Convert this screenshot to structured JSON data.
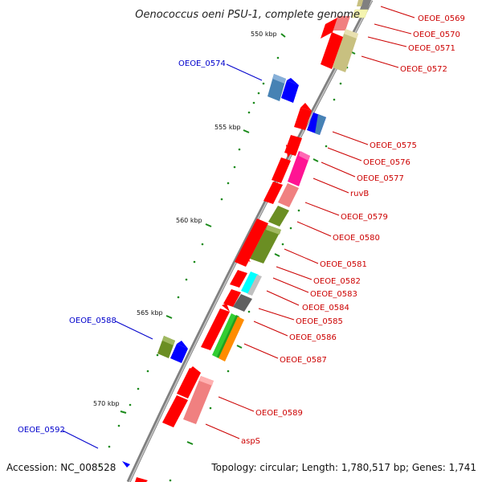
{
  "title": "Oenococcus oeni PSU-1, complete genome",
  "footer": {
    "accession": "Accession: NC_008528",
    "stats": "Topology: circular; Length: 1,780,517 bp; Genes: 1,741"
  },
  "ruler": [
    "550 kbp",
    "555 kbp",
    "560 kbp",
    "565 kbp",
    "570 kbp"
  ],
  "genes": {
    "g0569": "OEOE_0569",
    "g0570": "OEOE_0570",
    "g0571": "OEOE_0571",
    "g0572": "OEOE_0572",
    "g0574": "OEOE_0574",
    "g0575": "OEOE_0575",
    "g0576": "OEOE_0576",
    "g0577": "OEOE_0577",
    "ruvB": "ruvB",
    "g0579": "OEOE_0579",
    "g0580": "OEOE_0580",
    "g0581": "OEOE_0581",
    "g0582": "OEOE_0582",
    "g0583": "OEOE_0583",
    "g0584": "OEOE_0584",
    "g0585": "OEOE_0585",
    "g0586": "OEOE_0586",
    "g0587": "OEOE_0587",
    "g0588": "OEOE_0588",
    "g0589": "OEOE_0589",
    "aspS": "aspS",
    "g0592": "OEOE_0592"
  },
  "colors": {
    "backbone": "#808080",
    "cds_red": "#ff0000",
    "khaki": "#c8c080",
    "pink_light": "#f08080",
    "magenta": "#ff1493",
    "olive": "#6b8e23",
    "blue": "#0000ff",
    "steelblue": "#4682b4",
    "cyan": "#00ffff",
    "silver": "#c0c0c0",
    "gray": "#606060",
    "green": "#32cd32",
    "orange": "#ff8c00",
    "tick_green": "#1a8a1a",
    "label_red": "#cc0000",
    "label_blue": "#0000cc"
  }
}
